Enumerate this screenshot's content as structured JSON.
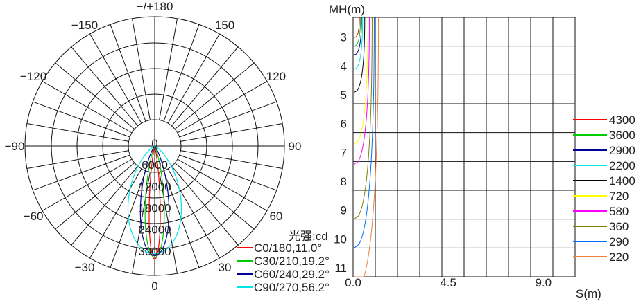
{
  "chart_data": [
    {
      "type": "polar",
      "unit_label": "光强:cd",
      "angle_labels": [
        {
          "angle": 180,
          "text": "−/+180"
        },
        {
          "angle": 150,
          "text": "150"
        },
        {
          "angle": -150,
          "text": "−150"
        },
        {
          "angle": 120,
          "text": "120"
        },
        {
          "angle": -120,
          "text": "−120"
        },
        {
          "angle": 90,
          "text": "90"
        },
        {
          "angle": -90,
          "text": "−90"
        },
        {
          "angle": 60,
          "text": "60"
        },
        {
          "angle": -60,
          "text": "−60"
        },
        {
          "angle": 30,
          "text": "30"
        },
        {
          "angle": -30,
          "text": "−30"
        },
        {
          "angle": 0,
          "text": "0"
        }
      ],
      "radial_max": 36000,
      "radial_ticks": [
        {
          "value": 0,
          "text": "0"
        },
        {
          "value": 6000,
          "text": "6000"
        },
        {
          "value": 12000,
          "text": "12000"
        },
        {
          "value": 18000,
          "text": "18000"
        },
        {
          "value": 24000,
          "text": "24000"
        },
        {
          "value": 30000,
          "text": "30000"
        }
      ],
      "series": [
        {
          "name": "C0/180,11.0°",
          "color": "#ff0000",
          "half_beam_deg": 5.5,
          "peak": 31500
        },
        {
          "name": "C30/210,19.2°",
          "color": "#00cc00",
          "half_beam_deg": 9.6,
          "peak": 31000
        },
        {
          "name": "C60/240,29.2°",
          "color": "#000099",
          "half_beam_deg": 14.6,
          "peak": 30500
        },
        {
          "name": "C90/270,56.2°",
          "color": "#00e6e6",
          "half_beam_deg": 28.1,
          "peak": 30000
        }
      ]
    },
    {
      "type": "line",
      "ylabel": "MH(m)",
      "xlabel": "S(m)",
      "xlim": [
        0,
        10.5
      ],
      "ylim": [
        2,
        11
      ],
      "x_tick_labels": [
        {
          "value": 0,
          "text": "0.0"
        },
        {
          "value": 4.5,
          "text": "4.5"
        },
        {
          "value": 9,
          "text": "9.0"
        }
      ],
      "y_tick_labels": [
        {
          "value": 3,
          "text": "3"
        },
        {
          "value": 4,
          "text": "4"
        },
        {
          "value": 5,
          "text": "5"
        },
        {
          "value": 6,
          "text": "6"
        },
        {
          "value": 7,
          "text": "7"
        },
        {
          "value": 8,
          "text": "8"
        },
        {
          "value": 9,
          "text": "9"
        },
        {
          "value": 10,
          "text": "10"
        },
        {
          "value": 11,
          "text": "11"
        }
      ],
      "series": [
        {
          "name": "4300",
          "color": "#ff0000",
          "max_height": 2.7,
          "max_spread": 0.25
        },
        {
          "name": "3600",
          "color": "#00cc00",
          "max_height": 3.0,
          "max_spread": 0.3
        },
        {
          "name": "2900",
          "color": "#000099",
          "max_height": 3.3,
          "max_spread": 0.35
        },
        {
          "name": "2200",
          "color": "#00e6e6",
          "max_height": 3.8,
          "max_spread": 0.4
        },
        {
          "name": "1400",
          "color": "#000000",
          "max_height": 4.6,
          "max_spread": 0.5
        },
        {
          "name": "720",
          "color": "#ffff00",
          "max_height": 6.4,
          "max_spread": 0.65
        },
        {
          "name": "580",
          "color": "#ff00ff",
          "max_height": 7.1,
          "max_spread": 0.72
        },
        {
          "name": "360",
          "color": "#808000",
          "max_height": 9.0,
          "max_spread": 0.85
        },
        {
          "name": "290",
          "color": "#0070ff",
          "max_height": 10.0,
          "max_spread": 0.95
        },
        {
          "name": "220",
          "color": "#f08040",
          "max_height": 11.5,
          "max_spread": 1.15
        }
      ]
    }
  ]
}
